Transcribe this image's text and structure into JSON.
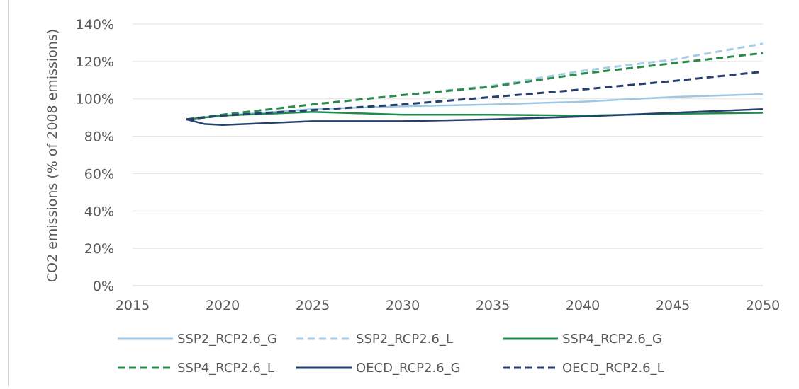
{
  "chart_data": {
    "type": "line",
    "title": "",
    "xlabel": "",
    "ylabel": "CO2 emissions (% of 2008 emissions)",
    "xlim": [
      2015,
      2050
    ],
    "ylim": [
      0,
      140
    ],
    "x_ticks": [
      2015,
      2020,
      2025,
      2030,
      2035,
      2040,
      2045,
      2050
    ],
    "y_ticks": [
      0,
      20,
      40,
      60,
      80,
      100,
      120,
      140
    ],
    "y_tick_labels": [
      "0%",
      "20%",
      "40%",
      "60%",
      "80%",
      "100%",
      "120%",
      "140%"
    ],
    "x_tick_labels": [
      "2015",
      "2020",
      "2025",
      "2030",
      "2035",
      "2040",
      "2045",
      "2050"
    ],
    "grid": "horizontal",
    "legend_position": "bottom",
    "series": [
      {
        "name": "SSP2_RCP2.6_G",
        "color": "#9dc8e4",
        "dash": "solid",
        "x": [
          2018,
          2020,
          2025,
          2030,
          2035,
          2040,
          2045,
          2050
        ],
        "y": [
          89,
          91,
          94.5,
          96,
          97,
          98.5,
          101,
          102.5
        ]
      },
      {
        "name": "SSP2_RCP2.6_L",
        "color": "#a8cce6",
        "dash": "dashed",
        "x": [
          2018,
          2020,
          2025,
          2030,
          2035,
          2040,
          2045,
          2050
        ],
        "y": [
          89,
          91.5,
          97,
          102,
          107,
          115,
          121,
          129.5
        ]
      },
      {
        "name": "SSP4_RCP2.6_G",
        "color": "#1e8c4e",
        "dash": "solid",
        "x": [
          2018,
          2020,
          2025,
          2030,
          2035,
          2040,
          2045,
          2050
        ],
        "y": [
          89,
          91,
          93,
          91.5,
          91.5,
          91,
          92,
          92.5
        ]
      },
      {
        "name": "SSP4_RCP2.6_L",
        "color": "#2a8a4a",
        "dash": "dashed",
        "x": [
          2018,
          2020,
          2025,
          2030,
          2035,
          2040,
          2045,
          2050
        ],
        "y": [
          89,
          91.5,
          97,
          102,
          106.5,
          113.5,
          119,
          124.5
        ]
      },
      {
        "name": "OECD_RCP2.6_G",
        "color": "#26406e",
        "dash": "solid",
        "x": [
          2018,
          2019,
          2020,
          2025,
          2030,
          2035,
          2040,
          2045,
          2050
        ],
        "y": [
          89,
          86.5,
          86,
          88,
          88,
          89,
          90.5,
          92.5,
          94.5
        ]
      },
      {
        "name": "OECD_RCP2.6_L",
        "color": "#26406e",
        "dash": "dashed",
        "x": [
          2018,
          2020,
          2025,
          2030,
          2035,
          2040,
          2045,
          2050
        ],
        "y": [
          89,
          91,
          94,
          97,
          101,
          105,
          109.5,
          114.5
        ]
      }
    ]
  }
}
